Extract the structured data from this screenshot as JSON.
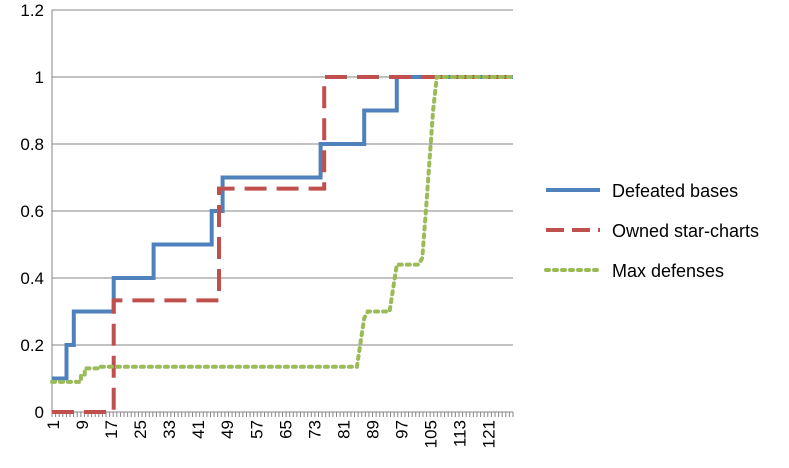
{
  "chart_data": {
    "type": "line",
    "xlim": [
      1,
      128
    ],
    "ylim": [
      0,
      1.2
    ],
    "y_ticks": [
      "0",
      "0.2",
      "0.4",
      "0.6",
      "0.8",
      "1",
      "1.2"
    ],
    "x_ticks": [
      "1",
      "9",
      "17",
      "25",
      "33",
      "41",
      "49",
      "57",
      "65",
      "73",
      "81",
      "89",
      "97",
      "105",
      "113",
      "121"
    ],
    "grid": "horizontal",
    "legend_position": "right",
    "series": [
      {
        "name": "Defeated bases",
        "color": "#4F81BD",
        "style": "solid",
        "points": [
          [
            1,
            0.1
          ],
          [
            5,
            0.1
          ],
          [
            5,
            0.2
          ],
          [
            7,
            0.2
          ],
          [
            7,
            0.3
          ],
          [
            18,
            0.3
          ],
          [
            18,
            0.4
          ],
          [
            29,
            0.4
          ],
          [
            29,
            0.5
          ],
          [
            45,
            0.5
          ],
          [
            45,
            0.6
          ],
          [
            48,
            0.6
          ],
          [
            48,
            0.7
          ],
          [
            75,
            0.7
          ],
          [
            75,
            0.8
          ],
          [
            87,
            0.8
          ],
          [
            87,
            0.9
          ],
          [
            96,
            0.9
          ],
          [
            96,
            1.0
          ],
          [
            128,
            1.0
          ]
        ]
      },
      {
        "name": "Owned star-charts",
        "color": "#C0504D",
        "style": "dashed",
        "points": [
          [
            1,
            0
          ],
          [
            18,
            0
          ],
          [
            18,
            0.333
          ],
          [
            47,
            0.333
          ],
          [
            47,
            0.667
          ],
          [
            76,
            0.667
          ],
          [
            76,
            1.0
          ],
          [
            128,
            1.0
          ]
        ]
      },
      {
        "name": "Max defenses",
        "color": "#9BBB59",
        "style": "dotted",
        "points": [
          [
            1,
            0.09
          ],
          [
            9,
            0.09
          ],
          [
            9,
            0.11
          ],
          [
            10,
            0.11
          ],
          [
            10,
            0.13
          ],
          [
            14,
            0.13
          ],
          [
            14,
            0.135
          ],
          [
            85,
            0.135
          ],
          [
            87,
            0.28
          ],
          [
            88,
            0.3
          ],
          [
            94,
            0.3
          ],
          [
            96,
            0.44
          ],
          [
            102,
            0.44
          ],
          [
            103,
            0.46
          ],
          [
            104,
            0.6
          ],
          [
            106,
            0.9
          ],
          [
            107,
            1.0
          ],
          [
            128,
            1.0
          ]
        ]
      }
    ]
  }
}
